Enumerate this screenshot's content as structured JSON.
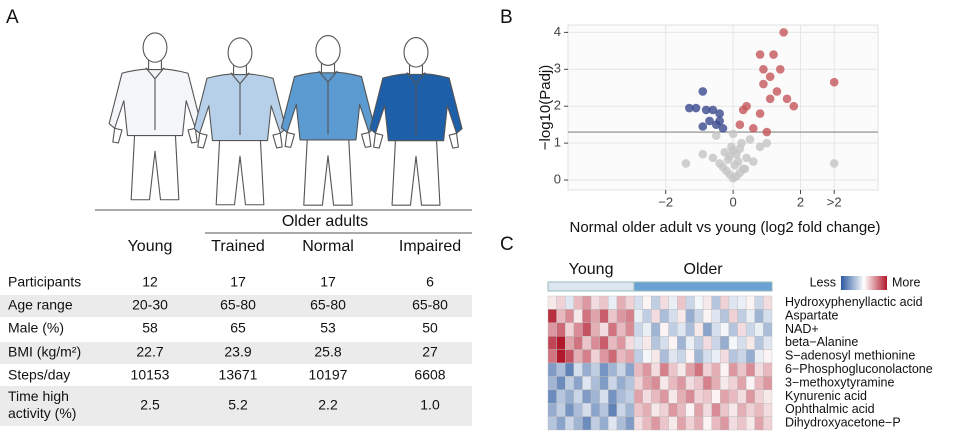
{
  "panel_labels": [
    "A",
    "B",
    "C"
  ],
  "table": {
    "group_header": "Older adults",
    "columns": [
      "Young",
      "Trained",
      "Normal",
      "Impaired"
    ],
    "rows": [
      {
        "label": [
          "Participants"
        ],
        "cells": [
          "12",
          "17",
          "17",
          "6"
        ]
      },
      {
        "label": [
          "Age range"
        ],
        "cells": [
          "20-30",
          "65-80",
          "65-80",
          "65-80"
        ]
      },
      {
        "label": [
          "Male (%)"
        ],
        "cells": [
          "58",
          "65",
          "53",
          "50"
        ]
      },
      {
        "label": [
          "BMI (kg/m²)"
        ],
        "cells": [
          "22.7",
          "23.9",
          "25.8",
          "27"
        ]
      },
      {
        "label": [
          "Steps/day"
        ],
        "cells": [
          "10153",
          "13671",
          "10197",
          "6608"
        ]
      },
      {
        "label": [
          "Time high",
          "activity (%)"
        ],
        "cells": [
          "2.5",
          "5.2",
          "2.2",
          "1.0"
        ]
      }
    ]
  },
  "chart_data": [
    {
      "type": "scatter",
      "xlabel": "Normal older adult vs young (log2 fold change)",
      "ylabel": "−log10(Padj)",
      "xlim": [
        -4.9,
        4.3
      ],
      "ylim": [
        -0.27,
        4.2
      ],
      "xticks": [
        {
          "value": -2,
          "label": "−2"
        },
        0,
        2,
        {
          "value": 3,
          "label": ">2"
        }
      ],
      "yticks": [
        0,
        1,
        2,
        3,
        4
      ],
      "grid": true,
      "threshold": 1.3,
      "series": [
        {
          "color": "#c4c4c4",
          "x": [
            0.0,
            0.1,
            -0.1,
            0.2,
            -0.2,
            0.3,
            -0.3,
            0.05,
            0.15,
            -0.15,
            0.4,
            -0.4,
            0.1,
            0.0,
            -0.05,
            0.25,
            -0.25,
            0.6,
            -0.6,
            0.8,
            -0.9,
            0.5,
            -0.5,
            1.0,
            -1.4,
            3.0,
            0.0,
            0.2,
            -0.1,
            0.35
          ],
          "values": [
            0.05,
            0.1,
            0.15,
            0.2,
            0.25,
            0.3,
            0.35,
            0.4,
            0.5,
            0.55,
            0.6,
            0.45,
            0.7,
            0.8,
            0.9,
            1.0,
            0.75,
            0.5,
            0.6,
            0.9,
            0.7,
            1.1,
            1.2,
            1.0,
            0.45,
            0.45,
            1.25,
            0.85,
            0.65,
            0.3
          ]
        },
        {
          "color": "#3a4a8e",
          "x": [
            -0.9,
            -1.3,
            -1.1,
            -0.8,
            -0.6,
            -0.4,
            -0.7,
            -0.4,
            -0.5,
            -0.9,
            -0.3
          ],
          "values": [
            2.4,
            1.95,
            1.95,
            1.9,
            1.9,
            1.8,
            1.6,
            1.6,
            1.5,
            1.45,
            1.4
          ]
        },
        {
          "color": "#c4565a",
          "x": [
            1.5,
            0.8,
            1.2,
            0.9,
            1.4,
            1.1,
            0.9,
            1.3,
            1.6,
            1.1,
            1.8,
            0.4,
            0.3,
            0.8,
            0.2,
            0.6,
            1.0,
            3.0
          ],
          "values": [
            4.0,
            3.4,
            3.4,
            3.0,
            3.0,
            2.8,
            2.6,
            2.4,
            2.2,
            2.2,
            2.0,
            2.0,
            1.9,
            1.8,
            1.5,
            1.4,
            1.3,
            2.65
          ]
        }
      ]
    },
    {
      "type": "heatmap",
      "zlim": [
        -2,
        2
      ],
      "colormap": [
        "#2c5aa0",
        "#ffffff",
        "#b2182b"
      ],
      "legend": {
        "low": "Less",
        "high": "More"
      },
      "column_groups": [
        {
          "name": "Young",
          "color": "#dde5f1",
          "columns": 10
        },
        {
          "name": "Older",
          "color": "#6aa3d3",
          "columns": 16
        }
      ],
      "rows": [
        "Hydroxyphenyllactic acid",
        "Aspartate",
        "NAD+",
        "beta−Alanine",
        "S−adenosyl methionine",
        "6−Phosphogluconolactone",
        "3−methoxytyramine",
        "Kynurenic acid",
        "Ophthalmic acid",
        "Dihydroxyacetone−P"
      ],
      "values": [
        [
          0.2,
          0.4,
          -0.3,
          0.6,
          0.9,
          0.3,
          0.5,
          -0.2,
          0.7,
          0.4,
          -0.4,
          0.1,
          -0.6,
          0.3,
          -0.2,
          0.5,
          -0.5,
          -0.1,
          0.2,
          -0.7,
          0.4,
          -0.3,
          -0.2,
          0.1,
          -0.5,
          0.3
        ],
        [
          1.8,
          0.6,
          1.0,
          0.2,
          1.2,
          0.8,
          1.4,
          0.5,
          0.9,
          1.1,
          -0.2,
          -0.6,
          0.3,
          -0.8,
          -0.4,
          0.2,
          -1.0,
          -0.5,
          0.1,
          -0.3,
          -0.7,
          0.4,
          -0.6,
          -0.2,
          -0.9,
          -0.4
        ],
        [
          0.9,
          1.3,
          0.4,
          1.0,
          1.5,
          0.7,
          0.3,
          1.2,
          0.6,
          1.0,
          -0.5,
          -0.2,
          -0.9,
          0.1,
          -0.6,
          -0.3,
          -0.8,
          0.2,
          -1.1,
          -0.4,
          -0.1,
          -0.7,
          0.3,
          -0.5,
          -0.2,
          -0.8
        ],
        [
          1.6,
          2.0,
          0.8,
          1.2,
          0.5,
          1.0,
          1.4,
          0.6,
          0.9,
          0.3,
          -0.3,
          0.2,
          -0.7,
          -0.4,
          0.1,
          -0.9,
          -0.2,
          -0.6,
          0.3,
          -0.5,
          -1.0,
          -0.1,
          -0.4,
          0.2,
          -0.7,
          -0.3
        ],
        [
          1.2,
          2.0,
          1.5,
          0.7,
          1.1,
          0.4,
          0.9,
          1.3,
          0.6,
          0.8,
          -0.6,
          -0.1,
          0.2,
          -0.8,
          -0.3,
          -0.5,
          0.1,
          -0.9,
          -0.4,
          -0.2,
          0.3,
          -0.7,
          -0.5,
          -1.0,
          -0.2,
          0.1
        ],
        [
          -1.2,
          -0.8,
          -1.5,
          -0.4,
          -1.0,
          -0.6,
          -1.3,
          -0.9,
          -0.5,
          -1.1,
          0.6,
          0.9,
          0.3,
          1.1,
          0.5,
          0.2,
          0.8,
          1.2,
          0.4,
          0.7,
          0.1,
          0.9,
          0.5,
          1.0,
          0.3,
          0.6
        ],
        [
          -0.9,
          -1.4,
          -0.6,
          -1.1,
          -0.3,
          -0.8,
          -1.2,
          -0.5,
          -1.0,
          -0.7,
          0.4,
          0.8,
          1.0,
          0.2,
          0.6,
          0.9,
          0.3,
          0.5,
          1.1,
          0.7,
          0.2,
          0.4,
          0.8,
          0.1,
          0.6,
          0.9
        ],
        [
          -1.4,
          -0.7,
          -1.0,
          -0.5,
          -1.2,
          -0.9,
          -0.4,
          -1.3,
          -0.8,
          -0.6,
          0.8,
          0.3,
          0.6,
          0.9,
          0.2,
          0.7,
          1.0,
          0.4,
          0.5,
          0.1,
          0.8,
          0.6,
          0.3,
          0.9,
          0.4,
          0.2
        ],
        [
          -1.0,
          -0.6,
          -1.3,
          -0.8,
          -0.4,
          -1.1,
          -0.7,
          -1.5,
          -0.5,
          -0.9,
          0.5,
          0.7,
          0.2,
          0.4,
          0.9,
          0.6,
          0.1,
          0.8,
          0.3,
          1.0,
          0.5,
          0.2,
          0.7,
          0.4,
          0.6,
          0.3
        ],
        [
          -0.7,
          -1.1,
          -0.5,
          -0.9,
          -1.4,
          -0.6,
          -1.0,
          -0.3,
          -0.8,
          -1.2,
          0.3,
          0.6,
          0.9,
          0.5,
          0.2,
          0.8,
          0.4,
          0.7,
          0.1,
          0.6,
          0.9,
          0.3,
          0.5,
          0.2,
          0.8,
          0.4
        ]
      ]
    }
  ]
}
